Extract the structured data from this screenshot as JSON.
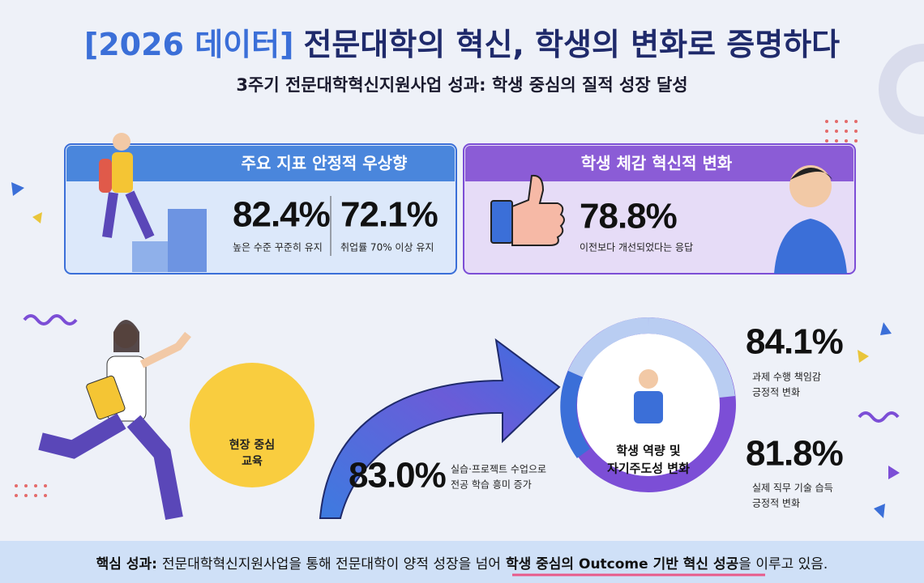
{
  "header": {
    "title_bracket": "[2026 데이터]",
    "title": "전문대학의 혁신, 학생의 변화로 증명하다",
    "subtitle": "3주기 전문대학혁신지원사업 성과: 학생 중심의 질적 성장 달성"
  },
  "cards": [
    {
      "title": "주요 지표 안정적 우상향",
      "stats": [
        {
          "value": "82.4%",
          "label": "높은 수준 꾸준히 유지"
        },
        {
          "value": "72.1%",
          "label": "취업률 70% 이상 유지"
        }
      ]
    },
    {
      "title": "학생 체감 혁신적 변화",
      "stats": [
        {
          "value": "78.8%",
          "label": "이전보다 개선되었다는 응답"
        }
      ]
    }
  ],
  "flow": {
    "start": [
      "현장 중심",
      "교육"
    ],
    "stat": {
      "value": "83.0%",
      "label": [
        "실습·프로젝트 수업으로",
        "전공 학습 흥미 증가"
      ]
    },
    "result": [
      "학생 역량 및",
      "자기주도성 변화"
    ],
    "outcomes": [
      {
        "value": "84.1%",
        "label": [
          "과제 수행 책임감",
          "긍정적 변화"
        ]
      },
      {
        "value": "81.8%",
        "label": [
          "실제 직무 기술 습득",
          "긍정적 변화"
        ]
      }
    ]
  },
  "footer": {
    "prefix": "핵심 성과:",
    "text": "전문대학혁신지원사업을 통해 전문대학이 양적 성장을 넘어",
    "highlight": "학생 중심의 Outcome 기반 혁신 성공",
    "suffix": "을 이루고 있음."
  }
}
